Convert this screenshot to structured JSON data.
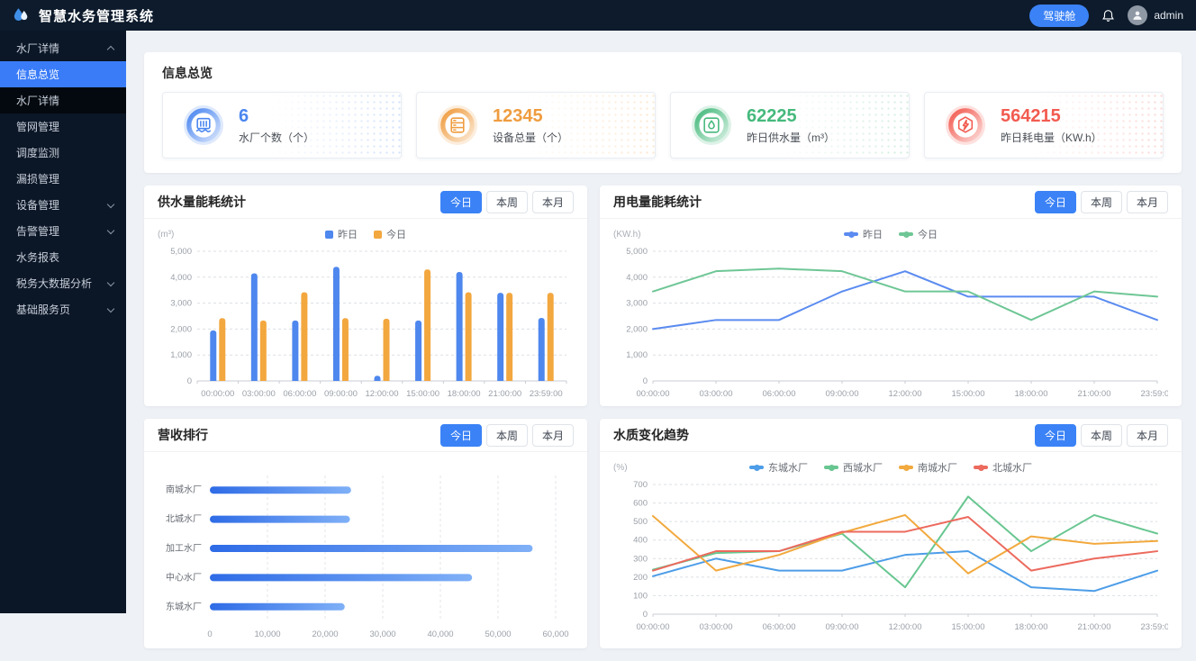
{
  "header": {
    "app_title": "智慧水务管理系统",
    "cockpit_button": "驾驶舱",
    "username": "admin",
    "accent_color": "#3b82f6"
  },
  "sidebar": {
    "items": [
      {
        "label": "水厂详情",
        "type": "group",
        "expanded": true
      },
      {
        "label": "信息总览",
        "type": "sub",
        "active": true
      },
      {
        "label": "水厂详情",
        "type": "sub"
      },
      {
        "label": "管网管理"
      },
      {
        "label": "调度监测"
      },
      {
        "label": "漏损管理"
      },
      {
        "label": "设备管理",
        "collapsible": true
      },
      {
        "label": "告警管理",
        "collapsible": true
      },
      {
        "label": "水务报表"
      },
      {
        "label": "税务大数据分析",
        "collapsible": true
      },
      {
        "label": "基础服务页",
        "collapsible": true
      }
    ]
  },
  "overview": {
    "title": "信息总览",
    "cards": [
      {
        "icon": "water-plant-icon",
        "value": "6",
        "label": "水厂个数（个）",
        "color": "#4a86f0"
      },
      {
        "icon": "device-total-icon",
        "value": "12345",
        "label": "设备总量（个）",
        "color": "#ef9c3f"
      },
      {
        "icon": "water-supply-icon",
        "value": "62225",
        "label": "昨日供水量（m³）",
        "color": "#45b97c"
      },
      {
        "icon": "energy-icon",
        "value": "564215",
        "label": "昨日耗电量（KW.h）",
        "color": "#f25b50"
      }
    ]
  },
  "tabs": [
    "今日",
    "本周",
    "本月"
  ],
  "chart_data": [
    {
      "type": "bar",
      "title": "供水量能耗统计",
      "ylabel": "(m³)",
      "categories": [
        "00:00:00",
        "03:00:00",
        "06:00:00",
        "09:00:00",
        "12:00:00",
        "15:00:00",
        "18:00:00",
        "21:00:00",
        "23:59:00"
      ],
      "series": [
        {
          "name": "昨日",
          "color": "#4e87ee",
          "values": [
            1950,
            4150,
            2330,
            4400,
            200,
            2330,
            4200,
            3400,
            2430
          ]
        },
        {
          "name": "今日",
          "color": "#f3a73f",
          "values": [
            2420,
            2330,
            3420,
            2420,
            2400,
            4300,
            3420,
            3400,
            3400
          ]
        }
      ],
      "ylim": [
        0,
        5000
      ],
      "ytick_step": 1000,
      "grid": "dashed",
      "legend_position": "top-center",
      "legend_style": "square"
    },
    {
      "type": "line",
      "title": "用电量能耗统计",
      "ylabel": "(KW.h)",
      "categories": [
        "00:00:00",
        "03:00:00",
        "06:00:00",
        "09:00:00",
        "12:00:00",
        "15:00:00",
        "18:00:00",
        "21:00:00",
        "23:59:00"
      ],
      "series": [
        {
          "name": "昨日",
          "color": "#5b8bf0",
          "values": [
            2000,
            2350,
            2350,
            3450,
            4230,
            3250,
            3250,
            3250,
            2350
          ]
        },
        {
          "name": "今日",
          "color": "#6ec695",
          "values": [
            3450,
            4230,
            4330,
            4230,
            3450,
            3450,
            2350,
            3450,
            3250
          ]
        }
      ],
      "ylim": [
        0,
        5000
      ],
      "ytick_step": 1000,
      "grid": "dashed",
      "legend_position": "top-center",
      "legend_style": "line"
    },
    {
      "type": "hbar",
      "title": "营收排行",
      "categories": [
        "南城水厂",
        "北城水厂",
        "加工水厂",
        "中心水厂",
        "东城水厂"
      ],
      "values": [
        24500,
        24300,
        56000,
        45500,
        23400
      ],
      "bar_color_start": "#2e6be6",
      "bar_color_end": "#7fb0f7",
      "xlim": [
        0,
        60000
      ],
      "xtick_step": 10000,
      "grid": "dashed"
    },
    {
      "type": "line",
      "title": "水质变化趋势",
      "ylabel": "(%)",
      "categories": [
        "00:00:00",
        "03:00:00",
        "06:00:00",
        "09:00:00",
        "12:00:00",
        "15:00:00",
        "18:00:00",
        "21:00:00",
        "23:59:00"
      ],
      "series": [
        {
          "name": "东城水厂",
          "color": "#4d9de8",
          "values": [
            205,
            300,
            235,
            235,
            320,
            340,
            145,
            125,
            235
          ]
        },
        {
          "name": "西城水厂",
          "color": "#68c690",
          "values": [
            240,
            330,
            340,
            435,
            145,
            635,
            340,
            535,
            435
          ]
        },
        {
          "name": "南城水厂",
          "color": "#f2a93e",
          "values": [
            530,
            235,
            320,
            440,
            535,
            220,
            420,
            380,
            395
          ]
        },
        {
          "name": "北城水厂",
          "color": "#ec6a5e",
          "values": [
            235,
            340,
            340,
            445,
            445,
            525,
            235,
            300,
            340
          ]
        }
      ],
      "ylim": [
        0,
        700
      ],
      "ytick_step": 100,
      "grid": "dashed",
      "legend_position": "top-center",
      "legend_style": "line"
    }
  ]
}
